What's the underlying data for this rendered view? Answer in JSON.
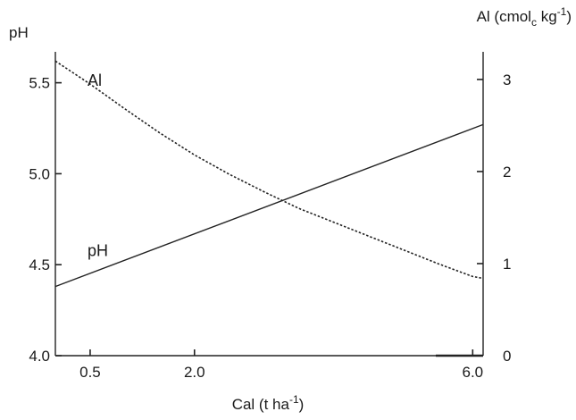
{
  "chart_data": {
    "type": "line",
    "title": "",
    "xlabel": "Cal (t ha",
    "xlabel_sup": "-1",
    "xlabel_end": ")",
    "ylabel_left": "pH",
    "ylabel_right": "Al (cmol",
    "ylabel_right_sub": "c",
    "ylabel_right_mid": " kg",
    "ylabel_right_sup": "-1",
    "ylabel_right_end": ")",
    "x_ticks": [
      {
        "value": 0.5,
        "label": "0.5"
      },
      {
        "value": 2.0,
        "label": "2.0"
      },
      {
        "value": 6.0,
        "label": "6.0"
      }
    ],
    "left_ticks": [
      {
        "value": 4.0,
        "label": "4.0"
      },
      {
        "value": 4.5,
        "label": "4.5"
      },
      {
        "value": 5.0,
        "label": "5.0"
      },
      {
        "value": 5.5,
        "label": "5.5"
      }
    ],
    "right_ticks": [
      {
        "value": 0,
        "label": "0"
      },
      {
        "value": 1,
        "label": "1"
      },
      {
        "value": 2,
        "label": "2"
      },
      {
        "value": 3,
        "label": "3"
      }
    ],
    "xlim": [
      0.0,
      6.15
    ],
    "ylim_left": [
      4.0,
      5.67
    ],
    "ylim_right": [
      0.0,
      3.3
    ],
    "grid": false,
    "series": [
      {
        "name": "pH",
        "axis": "left",
        "style": "solid",
        "x": [
          0.0,
          6.15
        ],
        "y": [
          4.38,
          5.27
        ]
      },
      {
        "name": "Al",
        "axis": "right",
        "style": "dotted",
        "x": [
          0.0,
          0.5,
          1.0,
          1.5,
          2.0,
          2.5,
          3.0,
          3.5,
          4.0,
          4.5,
          5.0,
          5.5,
          6.0,
          6.15
        ],
        "y": [
          3.2,
          2.95,
          2.68,
          2.42,
          2.18,
          1.97,
          1.78,
          1.6,
          1.45,
          1.3,
          1.15,
          1.0,
          0.86,
          0.84
        ]
      }
    ]
  }
}
